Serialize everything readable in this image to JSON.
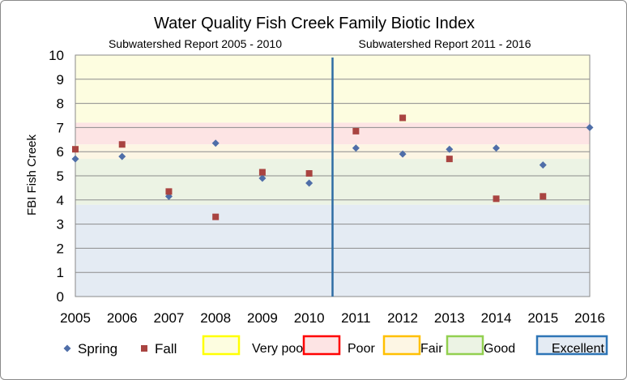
{
  "chart_data": {
    "type": "scatter",
    "title": "Water Quality Fish Creek Family Biotic Index",
    "ylabel": "FBI  Fish Creek",
    "xlabel": "",
    "xlim": [
      2005,
      2016
    ],
    "ylim": [
      0,
      10
    ],
    "x_ticks": [
      "2005",
      "2006",
      "2007",
      "2008",
      "2009",
      "2010",
      "2011",
      "2012",
      "2013",
      "2014",
      "2015",
      "2016"
    ],
    "y_ticks": [
      "0",
      "1",
      "2",
      "3",
      "4",
      "5",
      "6",
      "7",
      "8",
      "9",
      "10"
    ],
    "grid": true,
    "divider_x": 2010.5,
    "periods": [
      {
        "label": "Subwatershed  Report 2005 - 2010"
      },
      {
        "label": "Subwatershed  Report 2011 - 2016"
      }
    ],
    "bands": [
      {
        "name": "Very poor",
        "from": 7.2,
        "to": 10,
        "fill": "#fdfde0",
        "stroke": "#ffff00"
      },
      {
        "name": "Poor",
        "from": 6.3,
        "to": 7.2,
        "fill": "#fde4e4",
        "stroke": "#ff0000"
      },
      {
        "name": "Fair",
        "from": 5.7,
        "to": 6.3,
        "fill": "#fdf6e4",
        "stroke": "#ffc000"
      },
      {
        "name": "Good",
        "from": 3.8,
        "to": 5.7,
        "fill": "#ecf3e4",
        "stroke": "#92d050"
      },
      {
        "name": "Excellent",
        "from": 0,
        "to": 3.8,
        "fill": "#e4ebf3",
        "stroke": "#2e75b6"
      }
    ],
    "series": [
      {
        "name": "Spring",
        "color": "#4f6ea8",
        "marker": "diamond",
        "points": [
          [
            2005,
            5.7
          ],
          [
            2006,
            5.8
          ],
          [
            2007,
            4.15
          ],
          [
            2008,
            6.35
          ],
          [
            2009,
            4.9
          ],
          [
            2010,
            4.7
          ],
          [
            2011,
            6.15
          ],
          [
            2012,
            5.9
          ],
          [
            2013,
            6.1
          ],
          [
            2014,
            6.15
          ],
          [
            2015,
            5.45
          ],
          [
            2016,
            7.0
          ]
        ]
      },
      {
        "name": "Fall",
        "color": "#a94441",
        "marker": "square",
        "points": [
          [
            2005,
            6.1
          ],
          [
            2006,
            6.3
          ],
          [
            2007,
            4.35
          ],
          [
            2008,
            3.3
          ],
          [
            2009,
            5.15
          ],
          [
            2010,
            5.1
          ],
          [
            2011,
            6.85
          ],
          [
            2012,
            7.4
          ],
          [
            2013,
            5.7
          ],
          [
            2014,
            4.05
          ],
          [
            2015,
            4.15
          ]
        ]
      }
    ]
  }
}
